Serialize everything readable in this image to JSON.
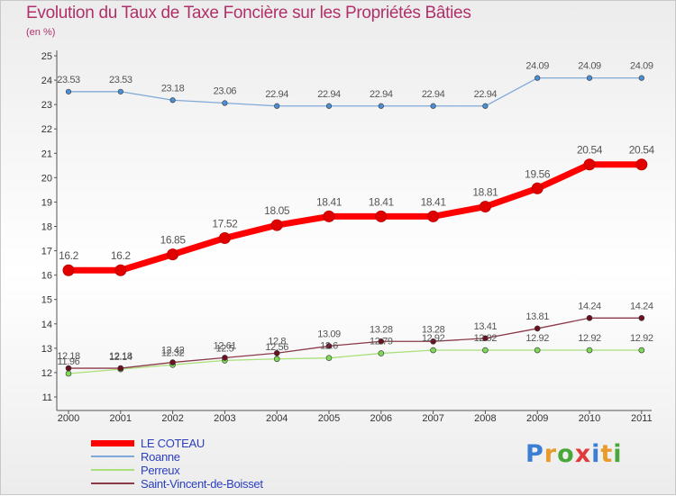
{
  "chart_data": {
    "type": "line",
    "title": "Evolution du Taux de Taxe Foncière sur les Propriétés Bâties",
    "subtitle": "(en %)",
    "xlabel": "",
    "ylabel": "",
    "categories": [
      "2000",
      "2001",
      "2002",
      "2003",
      "2004",
      "2005",
      "2006",
      "2007",
      "2008",
      "2009",
      "2010",
      "2011"
    ],
    "ylim": [
      11,
      25
    ],
    "yticks": [
      11,
      12,
      13,
      14,
      15,
      16,
      17,
      18,
      19,
      20,
      21,
      22,
      23,
      24,
      25
    ],
    "grid": false,
    "legend_position": "bottom-left",
    "series": [
      {
        "name": "LE COTEAU",
        "color": "#ff0000",
        "point_color": "#e00000",
        "values": [
          16.2,
          16.2,
          16.85,
          17.52,
          18.05,
          18.41,
          18.41,
          18.41,
          18.81,
          19.56,
          20.54,
          20.54
        ],
        "labels": [
          "16.2",
          "16.2",
          "16.85",
          "17.52",
          "18.05",
          "18.41",
          "18.41",
          "18.41",
          "18.81",
          "19.56",
          "20.54",
          "20.54"
        ]
      },
      {
        "name": "Roanne",
        "color": "#7fa9d8",
        "point_color": "#4a8fd6",
        "values": [
          23.53,
          23.53,
          23.18,
          23.06,
          22.94,
          22.94,
          22.94,
          22.94,
          22.94,
          24.09,
          24.09,
          24.09
        ],
        "labels": [
          "23.53",
          "23.53",
          "23.18",
          "23.06",
          "22.94",
          "22.94",
          "22.94",
          "22.94",
          "22.94",
          "24.09",
          "24.09",
          "24.09"
        ]
      },
      {
        "name": "Perreux",
        "color": "#a8e07a",
        "point_color": "#7ed957",
        "values": [
          11.96,
          12.14,
          12.32,
          12.5,
          12.56,
          12.6,
          12.79,
          12.92,
          12.92,
          12.92,
          12.92,
          12.92
        ],
        "labels": [
          "11.96",
          "12.14",
          "12.32",
          "12.5",
          "12.56",
          "12.6",
          "12.79",
          "12.92",
          "12.92",
          "12.92",
          "12.92",
          "12.92"
        ]
      },
      {
        "name": "Saint-Vincent-de-Boisset",
        "color": "#8b3a4a",
        "point_color": "#6b1020",
        "values": [
          12.18,
          12.18,
          12.42,
          12.61,
          12.8,
          13.09,
          13.28,
          13.28,
          13.41,
          13.81,
          14.24,
          14.24
        ],
        "labels": [
          "12.18",
          "12.18",
          "12.42",
          "12.61",
          "12.8",
          "13.09",
          "13.28",
          "13.28",
          "13.41",
          "13.81",
          "14.24",
          "14.24"
        ]
      }
    ]
  },
  "logo": {
    "text": "Proxiti",
    "letter_colors": [
      "#3a7fd5",
      "#e89a2a",
      "#4aa83a",
      "#e03a3a",
      "#3a7fd5",
      "#e89a2a",
      "#4aa83a"
    ]
  }
}
